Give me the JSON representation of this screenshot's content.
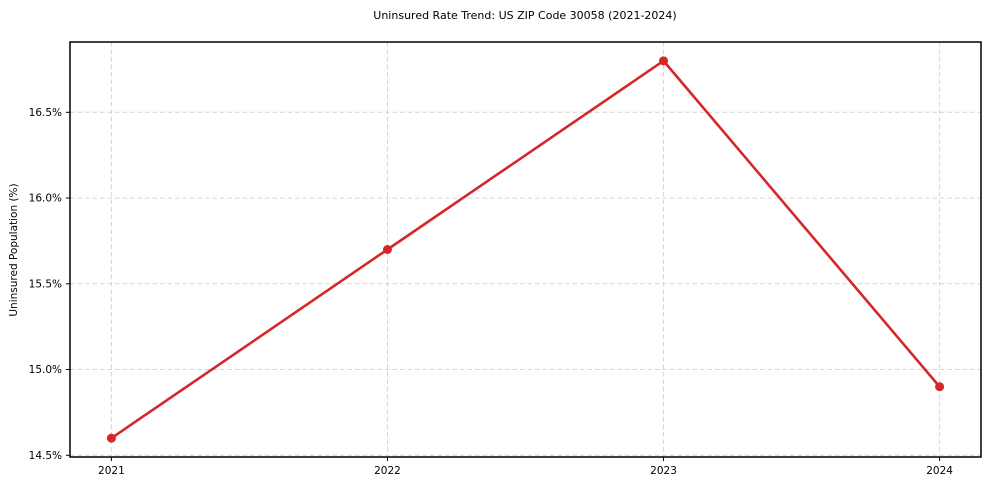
{
  "chart_data": {
    "type": "line",
    "title": "Uninsured Rate Trend: US ZIP Code 30058 (2021-2024)",
    "xlabel": "",
    "ylabel": "Uninsured Population (%)",
    "x": [
      2021,
      2022,
      2023,
      2024
    ],
    "x_tick_labels": [
      "2021",
      "2022",
      "2023",
      "2024"
    ],
    "values": [
      14.6,
      15.7,
      16.8,
      14.9
    ],
    "y_ticks": [
      14.5,
      15.0,
      15.5,
      16.0,
      16.5
    ],
    "y_tick_labels": [
      "14.5%",
      "15.0%",
      "15.5%",
      "16.0%",
      "16.5%"
    ],
    "xlim": [
      2020.85,
      2024.15
    ],
    "ylim": [
      14.49,
      16.91
    ],
    "grid": true,
    "legend": "none",
    "line_color": "#d62728",
    "marker": "circle",
    "marker_radius": 4.5
  }
}
